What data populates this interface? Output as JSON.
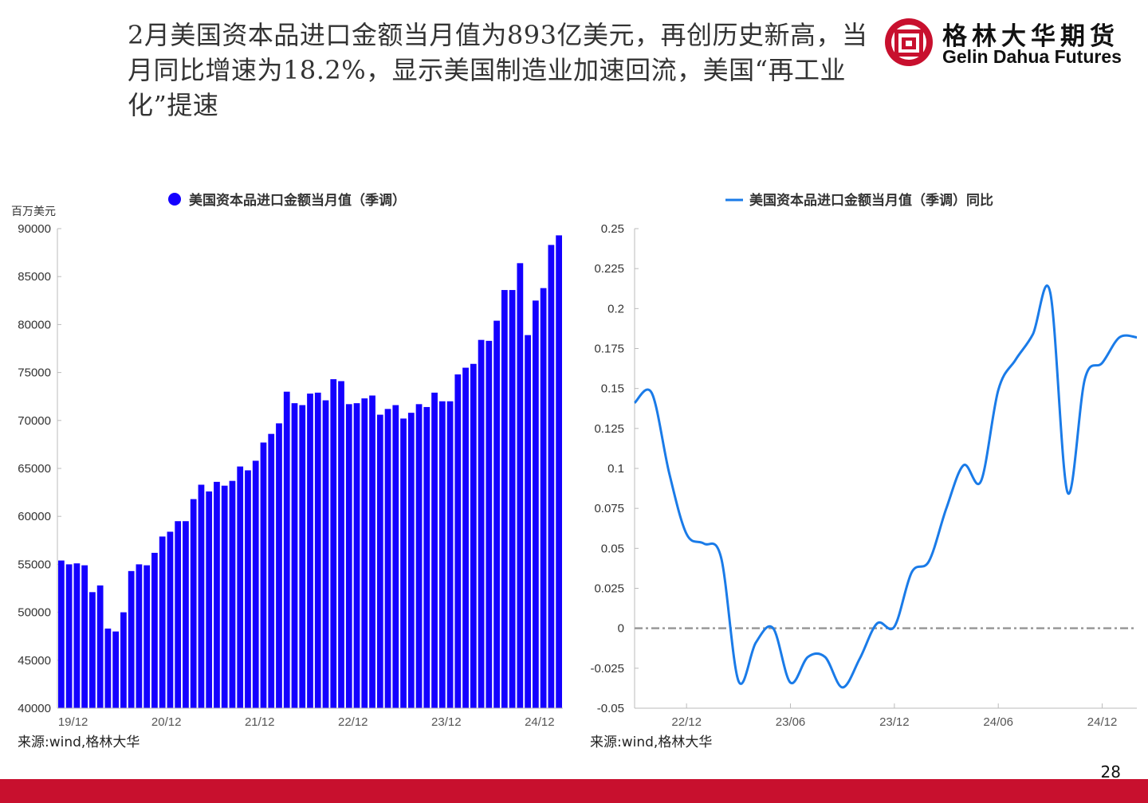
{
  "headline": "2月美国资本品进口金额当月值为893亿美元，再创历史新高，当月同比增速为18.2%，显示美国制造业加速回流，美国“再工业化”提速",
  "logo": {
    "cn": "格林大华期货",
    "en": "Gelin Dahua Futures",
    "color": "#c8102e"
  },
  "page_number": "28",
  "footer_color": "#c8102e",
  "chart_data": [
    {
      "type": "bar",
      "legend": "美国资本品进口金额当月值（季调）",
      "legend_placement": "top",
      "ylabel": "百万美元",
      "ylim": [
        40000,
        90000
      ],
      "yticks": [
        "90000",
        "85000",
        "80000",
        "75000",
        "70000",
        "65000",
        "60000",
        "55000",
        "50000",
        "45000",
        "40000"
      ],
      "xtick_labels": [
        "19/12",
        "20/12",
        "21/12",
        "22/12",
        "23/12",
        "24/12"
      ],
      "color": "#1400ff",
      "source": "来源:wind,格林大华",
      "values": [
        55400,
        55000,
        55100,
        54900,
        52100,
        52800,
        48300,
        48000,
        50000,
        54300,
        55000,
        54900,
        56200,
        57900,
        58400,
        59500,
        59500,
        61800,
        63300,
        62600,
        63600,
        63200,
        63700,
        65200,
        64800,
        65800,
        67700,
        68600,
        69700,
        73000,
        71800,
        71600,
        72800,
        72900,
        72100,
        74300,
        74100,
        71700,
        71800,
        72300,
        72600,
        70600,
        71200,
        71600,
        70200,
        70800,
        71700,
        71400,
        72900,
        72000,
        72000,
        74800,
        75500,
        75900,
        78400,
        78300,
        80400,
        83600,
        83600,
        86400,
        78900,
        82500,
        83800,
        88300,
        89300
      ]
    },
    {
      "type": "line",
      "legend": "美国资本品进口金额当月值（季调）同比",
      "legend_placement": "top",
      "ylim": [
        -0.05,
        0.25
      ],
      "yticks": [
        "0.25",
        "0.225",
        "0.2",
        "0.175",
        "0.15",
        "0.125",
        "0.1",
        "0.075",
        "0.05",
        "0.025",
        "0",
        "-0.025",
        "-0.05"
      ],
      "xtick_labels": [
        "22/12",
        "23/06",
        "23/12",
        "24/06",
        "24/12"
      ],
      "color": "#1a7be8",
      "zero_line_color": "#999999",
      "source": "来源:wind,格林大华",
      "values": [
        0.141,
        0.147,
        0.097,
        0.059,
        0.053,
        0.044,
        -0.033,
        -0.009,
        0.0,
        -0.034,
        -0.018,
        -0.018,
        -0.037,
        -0.019,
        0.003,
        0.001,
        0.035,
        0.042,
        0.075,
        0.102,
        0.092,
        0.149,
        0.168,
        0.184,
        0.21,
        0.085,
        0.156,
        0.166,
        0.182,
        0.182
      ]
    }
  ]
}
